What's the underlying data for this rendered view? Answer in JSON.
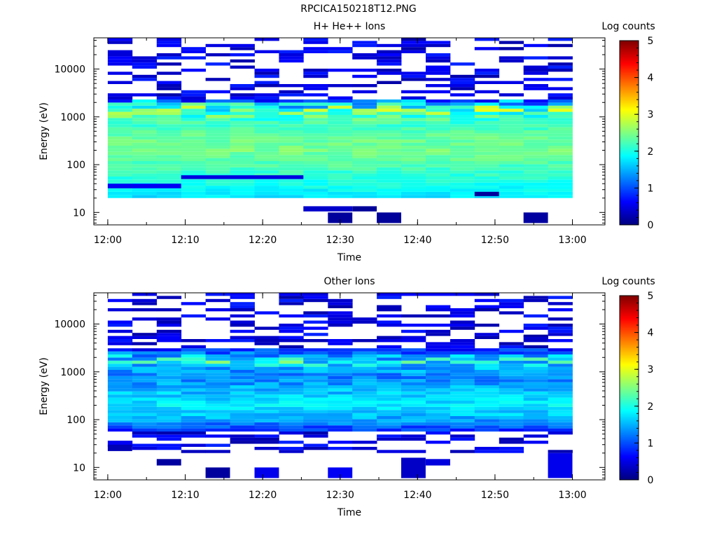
{
  "page_title": "RPCICA150218T12.PNG",
  "colormap": [
    "#00007f",
    "#0000ff",
    "#0080ff",
    "#00ffff",
    "#80ff80",
    "#ffff00",
    "#ff8000",
    "#ff0000",
    "#7f0000"
  ],
  "chart_data": [
    {
      "type": "heatmap",
      "title": "H+ He++ Ions",
      "xlabel": "Time",
      "ylabel": "Energy (eV)",
      "colorbar_label": "Log counts",
      "colorbar_ticks": [
        "0",
        "1",
        "2",
        "3",
        "4",
        "5"
      ],
      "zlim": [
        0,
        5
      ],
      "xlim": [
        -0.03,
        1.07
      ],
      "ylim": [
        5.5,
        45000
      ],
      "yscale": "log",
      "x_ticks": [
        {
          "pos": 0.0,
          "label": "12:00"
        },
        {
          "pos": 0.1667,
          "label": "12:10"
        },
        {
          "pos": 0.3333,
          "label": "12:20"
        },
        {
          "pos": 0.5,
          "label": "12:30"
        },
        {
          "pos": 0.6667,
          "label": "12:40"
        },
        {
          "pos": 0.8333,
          "label": "12:50"
        },
        {
          "pos": 1.0,
          "label": "13:00"
        }
      ],
      "y_ticks": [
        {
          "value": 10,
          "label": "10"
        },
        {
          "value": 100,
          "label": "100"
        },
        {
          "value": 1000,
          "label": "1000"
        },
        {
          "value": 10000,
          "label": "10000"
        }
      ],
      "columns": 19,
      "profile": [
        [
          20,
          1.6,
          1.9
        ],
        [
          50,
          1.9,
          2.2
        ],
        [
          100,
          2.1,
          2.4
        ],
        [
          200,
          2.3,
          2.6
        ],
        [
          400,
          2.2,
          2.5
        ],
        [
          700,
          2.0,
          2.3
        ],
        [
          1000,
          1.8,
          2.7
        ],
        [
          1500,
          1.4,
          3.2
        ],
        [
          1800,
          0.8,
          2.6
        ],
        [
          2200,
          0.4,
          1.8
        ]
      ],
      "sparse": [
        {
          "start_col": 0,
          "end_col": 3,
          "emin": 32,
          "emax": 40
        },
        {
          "start_col": 3,
          "end_col": 8,
          "emin": 50,
          "emax": 60
        },
        {
          "start_col": 8,
          "end_col": 10,
          "emin": 10.5,
          "emax": 13.5
        },
        {
          "start_col": 9,
          "end_col": 10,
          "emin": 6,
          "emax": 10
        },
        {
          "start_col": 10,
          "end_col": 11,
          "emin": 10.5,
          "emax": 13.5
        },
        {
          "start_col": 11,
          "end_col": 12,
          "emin": 6,
          "emax": 10
        },
        {
          "start_col": 15,
          "end_col": 16,
          "emin": 22,
          "emax": 27
        },
        {
          "start_col": 17,
          "end_col": 18,
          "emin": 6,
          "emax": 10
        }
      ]
    },
    {
      "type": "heatmap",
      "title": "Other Ions",
      "xlabel": "Time",
      "ylabel": "Energy (eV)",
      "colorbar_label": "Log counts",
      "colorbar_ticks": [
        "0",
        "1",
        "2",
        "3",
        "4",
        "5"
      ],
      "zlim": [
        0,
        5
      ],
      "xlim": [
        -0.03,
        1.07
      ],
      "ylim": [
        5.5,
        45000
      ],
      "yscale": "log",
      "x_ticks": [
        {
          "pos": 0.0,
          "label": "12:00"
        },
        {
          "pos": 0.1667,
          "label": "12:10"
        },
        {
          "pos": 0.3333,
          "label": "12:20"
        },
        {
          "pos": 0.5,
          "label": "12:30"
        },
        {
          "pos": 0.6667,
          "label": "12:40"
        },
        {
          "pos": 0.8333,
          "label": "12:50"
        },
        {
          "pos": 1.0,
          "label": "13:00"
        }
      ],
      "y_ticks": [
        {
          "value": 10,
          "label": "10"
        },
        {
          "value": 100,
          "label": "100"
        },
        {
          "value": 1000,
          "label": "1000"
        },
        {
          "value": 10000,
          "label": "10000"
        }
      ],
      "columns": 19,
      "profile": [
        [
          60,
          0.6,
          1.1
        ],
        [
          100,
          1.2,
          1.7
        ],
        [
          200,
          1.6,
          2.0
        ],
        [
          400,
          1.3,
          1.8
        ],
        [
          800,
          1.0,
          1.5
        ],
        [
          1200,
          1.1,
          1.8
        ],
        [
          1600,
          1.2,
          2.6
        ],
        [
          2200,
          1.0,
          2.0
        ],
        [
          3000,
          0.4,
          1.2
        ]
      ],
      "sparse": [
        {
          "start_col": 0,
          "end_col": 1,
          "emin": 22,
          "emax": 30
        },
        {
          "start_col": 2,
          "end_col": 3,
          "emin": 11,
          "emax": 15
        },
        {
          "start_col": 4,
          "end_col": 5,
          "emin": 6,
          "emax": 10
        },
        {
          "start_col": 5,
          "end_col": 6,
          "emin": 18500,
          "emax": 20000
        },
        {
          "start_col": 6,
          "end_col": 7,
          "emin": 6,
          "emax": 10
        },
        {
          "start_col": 9,
          "end_col": 10,
          "emin": 6,
          "emax": 10
        },
        {
          "start_col": 12,
          "end_col": 13,
          "emin": 6,
          "emax": 16
        },
        {
          "start_col": 13,
          "end_col": 14,
          "emin": 11,
          "emax": 15
        },
        {
          "start_col": 17,
          "end_col": 18,
          "emin": 5400,
          "emax": 6000
        },
        {
          "start_col": 18,
          "end_col": 19,
          "emin": 6,
          "emax": 20
        }
      ]
    }
  ]
}
